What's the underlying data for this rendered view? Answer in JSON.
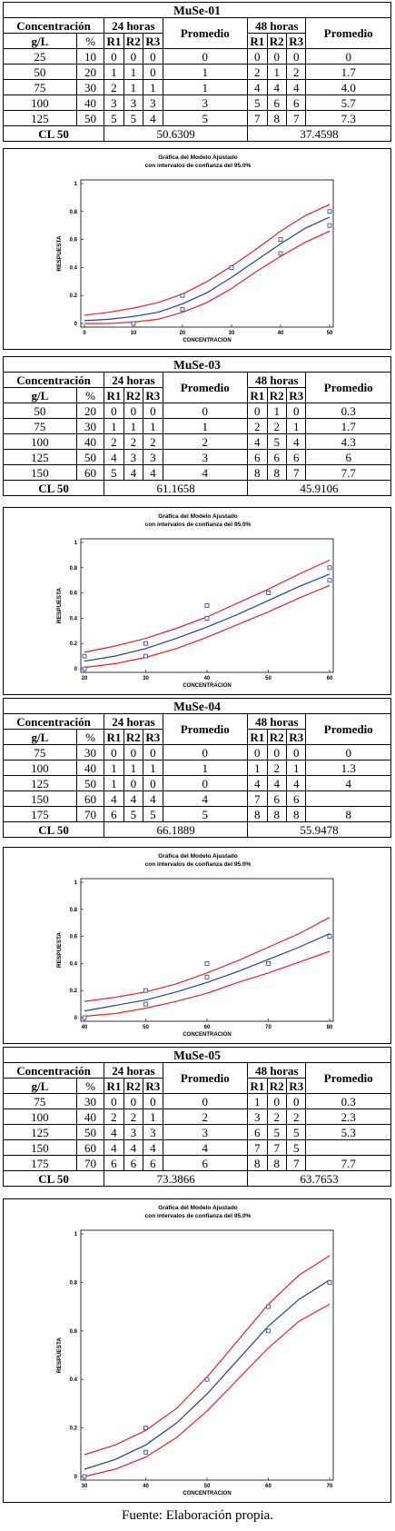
{
  "footer": "Fuente: Elaboración propia.",
  "labels": {
    "concentracion": "Concentración",
    "h24": "24 horas",
    "h48": "48 horas",
    "promedio": "Promedio",
    "gl": "g/L",
    "pct": "%",
    "r1": "R1",
    "r2": "R2",
    "r3": "R3",
    "cl50": "CL 50"
  },
  "chart_text": {
    "title1": "Gráfica del Modelo Ajustado",
    "title2": "con intervalos de confianza del 95.0%",
    "xlabel": "CONCENTRACION",
    "ylabel": "RESPUESTA",
    "yticks": [
      "0",
      "0.2",
      "0.4",
      "0.6",
      "0.8",
      "1"
    ]
  },
  "sections": [
    {
      "id": "muse01",
      "title": "MuSe-01",
      "rows": [
        {
          "gl": "25",
          "pct": "10",
          "r24": [
            "0",
            "0",
            "0"
          ],
          "p24": "0",
          "r48": [
            "0",
            "0",
            "0"
          ],
          "p48": "0"
        },
        {
          "gl": "50",
          "pct": "20",
          "r24": [
            "1",
            "1",
            "0"
          ],
          "p24": "1",
          "r48": [
            "2",
            "1",
            "2"
          ],
          "p48": "1.7"
        },
        {
          "gl": "75",
          "pct": "30",
          "r24": [
            "2",
            "1",
            "1"
          ],
          "p24": "1",
          "r48": [
            "4",
            "4",
            "4"
          ],
          "p48": "4.0"
        },
        {
          "gl": "100",
          "pct": "40",
          "r24": [
            "3",
            "3",
            "3"
          ],
          "p24": "3",
          "r48": [
            "5",
            "6",
            "6"
          ],
          "p48": "5.7"
        },
        {
          "gl": "125",
          "pct": "50",
          "r24": [
            "5",
            "5",
            "4"
          ],
          "p24": "5",
          "r48": [
            "7",
            "8",
            "7"
          ],
          "p48": "7.3"
        }
      ],
      "cl50_24": "50.6309",
      "cl50_48": "37.4598"
    },
    {
      "id": "muse03",
      "title": "MuSe-03",
      "rows": [
        {
          "gl": "50",
          "pct": "20",
          "r24": [
            "0",
            "0",
            "0"
          ],
          "p24": "0",
          "r48": [
            "0",
            "1",
            "0"
          ],
          "p48": "0.3"
        },
        {
          "gl": "75",
          "pct": "30",
          "r24": [
            "1",
            "1",
            "1"
          ],
          "p24": "1",
          "r48": [
            "2",
            "2",
            "1"
          ],
          "p48": "1.7"
        },
        {
          "gl": "100",
          "pct": "40",
          "r24": [
            "2",
            "2",
            "2"
          ],
          "p24": "2",
          "r48": [
            "4",
            "5",
            "4"
          ],
          "p48": "4.3"
        },
        {
          "gl": "125",
          "pct": "50",
          "r24": [
            "4",
            "3",
            "3"
          ],
          "p24": "3",
          "r48": [
            "6",
            "6",
            "6"
          ],
          "p48": "6"
        },
        {
          "gl": "150",
          "pct": "60",
          "r24": [
            "5",
            "4",
            "4"
          ],
          "p24": "4",
          "r48": [
            "8",
            "8",
            "7"
          ],
          "p48": "7.7"
        }
      ],
      "cl50_24": "61.1658",
      "cl50_48": "45.9106"
    },
    {
      "id": "muse04",
      "title": "MuSe-04",
      "rows": [
        {
          "gl": "75",
          "pct": "30",
          "r24": [
            "0",
            "0",
            "0"
          ],
          "p24": "0",
          "r48": [
            "0",
            "0",
            "0"
          ],
          "p48": "0"
        },
        {
          "gl": "100",
          "pct": "40",
          "r24": [
            "1",
            "1",
            "1"
          ],
          "p24": "1",
          "r48": [
            "1",
            "2",
            "1"
          ],
          "p48": "1.3"
        },
        {
          "gl": "125",
          "pct": "50",
          "r24": [
            "1",
            "0",
            "0"
          ],
          "p24": "0",
          "r48": [
            "4",
            "4",
            "4"
          ],
          "p48": "4"
        },
        {
          "gl": "150",
          "pct": "60",
          "r24": [
            "4",
            "4",
            "4"
          ],
          "p24": "4",
          "r48": [
            "7",
            "6",
            "6"
          ],
          "p48": ""
        },
        {
          "gl": "175",
          "pct": "70",
          "r24": [
            "6",
            "5",
            "5"
          ],
          "p24": "5",
          "r48": [
            "8",
            "8",
            "8"
          ],
          "p48": "8"
        }
      ],
      "cl50_24": "66.1889",
      "cl50_48": "55.9478"
    },
    {
      "id": "muse05",
      "title": "MuSe-05",
      "rows": [
        {
          "gl": "75",
          "pct": "30",
          "r24": [
            "0",
            "0",
            "0"
          ],
          "p24": "0",
          "r48": [
            "1",
            "0",
            "0"
          ],
          "p48": "0.3"
        },
        {
          "gl": "100",
          "pct": "40",
          "r24": [
            "2",
            "2",
            "1"
          ],
          "p24": "2",
          "r48": [
            "3",
            "2",
            "2"
          ],
          "p48": "2.3"
        },
        {
          "gl": "125",
          "pct": "50",
          "r24": [
            "4",
            "3",
            "3"
          ],
          "p24": "3",
          "r48": [
            "6",
            "5",
            "5"
          ],
          "p48": "5.3"
        },
        {
          "gl": "150",
          "pct": "60",
          "r24": [
            "4",
            "4",
            "4"
          ],
          "p24": "4",
          "r48": [
            "7",
            "7",
            "5"
          ],
          "p48": ""
        },
        {
          "gl": "175",
          "pct": "70",
          "r24": [
            "6",
            "6",
            "6"
          ],
          "p24": "6",
          "r48": [
            "8",
            "8",
            "7"
          ],
          "p48": "7.7"
        }
      ],
      "cl50_24": "73.3866",
      "cl50_48": "63.7653"
    }
  ],
  "chart_data": [
    {
      "type": "line",
      "title": "Gráfica del Modelo Ajustado con intervalos de confianza del 95.0%",
      "xlabel": "CONCENTRACION",
      "ylabel": "RESPUESTA",
      "xlim": [
        0,
        50
      ],
      "ylim": [
        0,
        1
      ],
      "xticks": [
        0,
        10,
        20,
        30,
        40,
        50
      ],
      "points": [
        [
          10,
          0
        ],
        [
          20,
          0.2
        ],
        [
          20,
          0.1
        ],
        [
          30,
          0.4
        ],
        [
          40,
          0.6
        ],
        [
          40,
          0.5
        ],
        [
          50,
          0.8
        ],
        [
          50,
          0.7
        ]
      ],
      "fit_x": [
        0,
        5,
        10,
        15,
        20,
        25,
        30,
        35,
        40,
        45,
        50
      ],
      "fit": [
        0.02,
        0.03,
        0.05,
        0.08,
        0.14,
        0.22,
        0.33,
        0.45,
        0.57,
        0.68,
        0.76
      ],
      "upper": [
        0.06,
        0.08,
        0.11,
        0.15,
        0.21,
        0.3,
        0.41,
        0.53,
        0.66,
        0.77,
        0.85
      ],
      "lower": [
        0.0,
        0.0,
        0.01,
        0.03,
        0.08,
        0.15,
        0.25,
        0.37,
        0.48,
        0.58,
        0.66
      ]
    },
    {
      "type": "line",
      "title": "Gráfica del Modelo Ajustado con intervalos de confianza del 95.0%",
      "xlabel": "CONCENTRACION",
      "ylabel": "RESPUESTA",
      "xlim": [
        20,
        60
      ],
      "ylim": [
        0,
        1
      ],
      "xticks": [
        20,
        30,
        40,
        50,
        60
      ],
      "points": [
        [
          20,
          0.1
        ],
        [
          20,
          0
        ],
        [
          30,
          0.2
        ],
        [
          30,
          0.1
        ],
        [
          40,
          0.5
        ],
        [
          40,
          0.4
        ],
        [
          50,
          0.6
        ],
        [
          60,
          0.8
        ],
        [
          60,
          0.7
        ]
      ],
      "fit_x": [
        20,
        25,
        30,
        35,
        40,
        45,
        50,
        55,
        60
      ],
      "fit": [
        0.06,
        0.1,
        0.16,
        0.24,
        0.33,
        0.43,
        0.54,
        0.65,
        0.75
      ],
      "upper": [
        0.13,
        0.18,
        0.24,
        0.32,
        0.41,
        0.52,
        0.63,
        0.75,
        0.86
      ],
      "lower": [
        0.01,
        0.04,
        0.09,
        0.16,
        0.25,
        0.35,
        0.45,
        0.56,
        0.66
      ]
    },
    {
      "type": "line",
      "title": "Gráfica del Modelo Ajustado con intervalos de confianza del 95.0%",
      "xlabel": "CONCENTRACION",
      "ylabel": "RESPUESTA",
      "xlim": [
        40,
        80
      ],
      "ylim": [
        0,
        1
      ],
      "xticks": [
        40,
        50,
        60,
        70,
        80
      ],
      "points": [
        [
          40,
          0
        ],
        [
          50,
          0.2
        ],
        [
          50,
          0.1
        ],
        [
          60,
          0.4
        ],
        [
          60,
          0.3
        ],
        [
          70,
          0.4
        ],
        [
          80,
          0.6
        ]
      ],
      "fit_x": [
        40,
        45,
        50,
        55,
        60,
        65,
        70,
        75,
        80
      ],
      "fit": [
        0.05,
        0.09,
        0.13,
        0.19,
        0.26,
        0.34,
        0.43,
        0.52,
        0.62
      ],
      "upper": [
        0.12,
        0.15,
        0.19,
        0.25,
        0.33,
        0.42,
        0.52,
        0.62,
        0.74
      ],
      "lower": [
        0.01,
        0.03,
        0.07,
        0.12,
        0.18,
        0.26,
        0.33,
        0.41,
        0.49
      ]
    },
    {
      "type": "line",
      "title": "Gráfica del Modelo Ajustado con intervalos de confianza del 95.0%",
      "xlabel": "CONCENTRACION",
      "ylabel": "RESPUESTA",
      "xlim": [
        30,
        70
      ],
      "ylim": [
        0,
        1
      ],
      "xticks": [
        30,
        40,
        50,
        60,
        70
      ],
      "points": [
        [
          30,
          0
        ],
        [
          40,
          0.2
        ],
        [
          40,
          0.1
        ],
        [
          50,
          0.4
        ],
        [
          60,
          0.7
        ],
        [
          60,
          0.6
        ],
        [
          70,
          0.8
        ]
      ],
      "fit_x": [
        30,
        35,
        40,
        45,
        50,
        55,
        60,
        65,
        70
      ],
      "fit": [
        0.03,
        0.07,
        0.13,
        0.22,
        0.34,
        0.48,
        0.62,
        0.73,
        0.81
      ],
      "upper": [
        0.09,
        0.13,
        0.19,
        0.28,
        0.41,
        0.56,
        0.71,
        0.83,
        0.91
      ],
      "lower": [
        0.0,
        0.03,
        0.08,
        0.16,
        0.27,
        0.4,
        0.53,
        0.64,
        0.71
      ]
    }
  ]
}
